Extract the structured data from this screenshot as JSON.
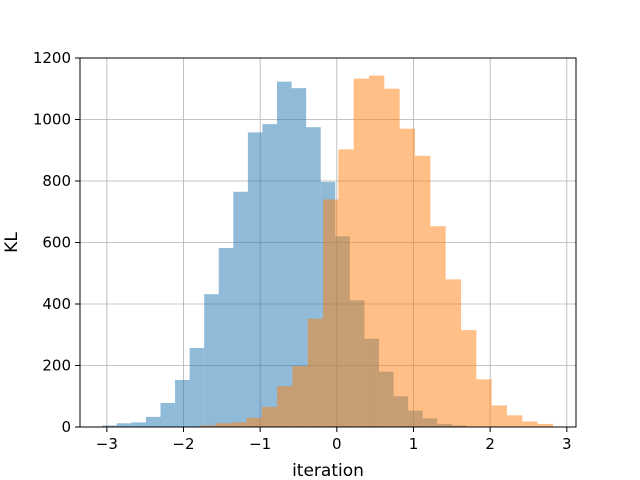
{
  "chart_data": {
    "type": "histogram",
    "title": "",
    "xlabel": "iteration",
    "ylabel": "KL",
    "xlim": [
      -3.35,
      3.12
    ],
    "ylim": [
      0,
      1200
    ],
    "xticks": [
      -3,
      -2,
      -1,
      0,
      1,
      2,
      3
    ],
    "xtick_labels": [
      "−3",
      "−2",
      "−1",
      "0",
      "1",
      "2",
      "3"
    ],
    "yticks": [
      0,
      200,
      400,
      600,
      800,
      1000,
      1200
    ],
    "ytick_labels": [
      "0",
      "200",
      "400",
      "600",
      "800",
      "1000",
      "1200"
    ],
    "grid": true,
    "series": [
      {
        "color": "#1f77b4",
        "opacity": 0.5,
        "bins": [
          {
            "x0": -3.06,
            "x1": -2.87,
            "y": 5
          },
          {
            "x0": -2.87,
            "x1": -2.68,
            "y": 12
          },
          {
            "x0": -2.68,
            "x1": -2.49,
            "y": 15
          },
          {
            "x0": -2.49,
            "x1": -2.3,
            "y": 33
          },
          {
            "x0": -2.3,
            "x1": -2.11,
            "y": 78
          },
          {
            "x0": -2.11,
            "x1": -1.92,
            "y": 153
          },
          {
            "x0": -1.92,
            "x1": -1.73,
            "y": 257
          },
          {
            "x0": -1.73,
            "x1": -1.54,
            "y": 432
          },
          {
            "x0": -1.54,
            "x1": -1.35,
            "y": 582
          },
          {
            "x0": -1.35,
            "x1": -1.16,
            "y": 765
          },
          {
            "x0": -1.16,
            "x1": -0.97,
            "y": 958
          },
          {
            "x0": -0.97,
            "x1": -0.78,
            "y": 985
          },
          {
            "x0": -0.78,
            "x1": -0.59,
            "y": 1123
          },
          {
            "x0": -0.59,
            "x1": -0.4,
            "y": 1102
          },
          {
            "x0": -0.4,
            "x1": -0.21,
            "y": 975
          },
          {
            "x0": -0.21,
            "x1": -0.02,
            "y": 797
          },
          {
            "x0": -0.02,
            "x1": 0.17,
            "y": 620
          },
          {
            "x0": 0.17,
            "x1": 0.36,
            "y": 412
          },
          {
            "x0": 0.36,
            "x1": 0.55,
            "y": 287
          },
          {
            "x0": 0.55,
            "x1": 0.74,
            "y": 180
          },
          {
            "x0": 0.74,
            "x1": 0.93,
            "y": 100
          },
          {
            "x0": 0.93,
            "x1": 1.12,
            "y": 53
          },
          {
            "x0": 1.12,
            "x1": 1.31,
            "y": 28
          },
          {
            "x0": 1.31,
            "x1": 1.5,
            "y": 10
          },
          {
            "x0": 1.5,
            "x1": 1.69,
            "y": 5
          }
        ]
      },
      {
        "color": "#ff7f0e",
        "opacity": 0.5,
        "bins": [
          {
            "x0": -1.78,
            "x1": -1.58,
            "y": 5
          },
          {
            "x0": -1.58,
            "x1": -1.38,
            "y": 12
          },
          {
            "x0": -1.38,
            "x1": -1.18,
            "y": 15
          },
          {
            "x0": -1.18,
            "x1": -0.98,
            "y": 30
          },
          {
            "x0": -0.98,
            "x1": -0.78,
            "y": 65
          },
          {
            "x0": -0.78,
            "x1": -0.58,
            "y": 133
          },
          {
            "x0": -0.58,
            "x1": -0.38,
            "y": 198
          },
          {
            "x0": -0.38,
            "x1": -0.18,
            "y": 352
          },
          {
            "x0": -0.18,
            "x1": 0.02,
            "y": 740
          },
          {
            "x0": 0.02,
            "x1": 0.22,
            "y": 903
          },
          {
            "x0": 0.22,
            "x1": 0.42,
            "y": 1133
          },
          {
            "x0": 0.42,
            "x1": 0.62,
            "y": 1143
          },
          {
            "x0": 0.62,
            "x1": 0.82,
            "y": 1100
          },
          {
            "x0": 0.82,
            "x1": 1.02,
            "y": 970
          },
          {
            "x0": 1.02,
            "x1": 1.22,
            "y": 882
          },
          {
            "x0": 1.22,
            "x1": 1.42,
            "y": 653
          },
          {
            "x0": 1.42,
            "x1": 1.62,
            "y": 480
          },
          {
            "x0": 1.62,
            "x1": 1.82,
            "y": 315
          },
          {
            "x0": 1.82,
            "x1": 2.02,
            "y": 155
          },
          {
            "x0": 2.02,
            "x1": 2.22,
            "y": 70
          },
          {
            "x0": 2.22,
            "x1": 2.42,
            "y": 38
          },
          {
            "x0": 2.42,
            "x1": 2.62,
            "y": 18
          },
          {
            "x0": 2.62,
            "x1": 2.82,
            "y": 10
          }
        ]
      }
    ]
  }
}
